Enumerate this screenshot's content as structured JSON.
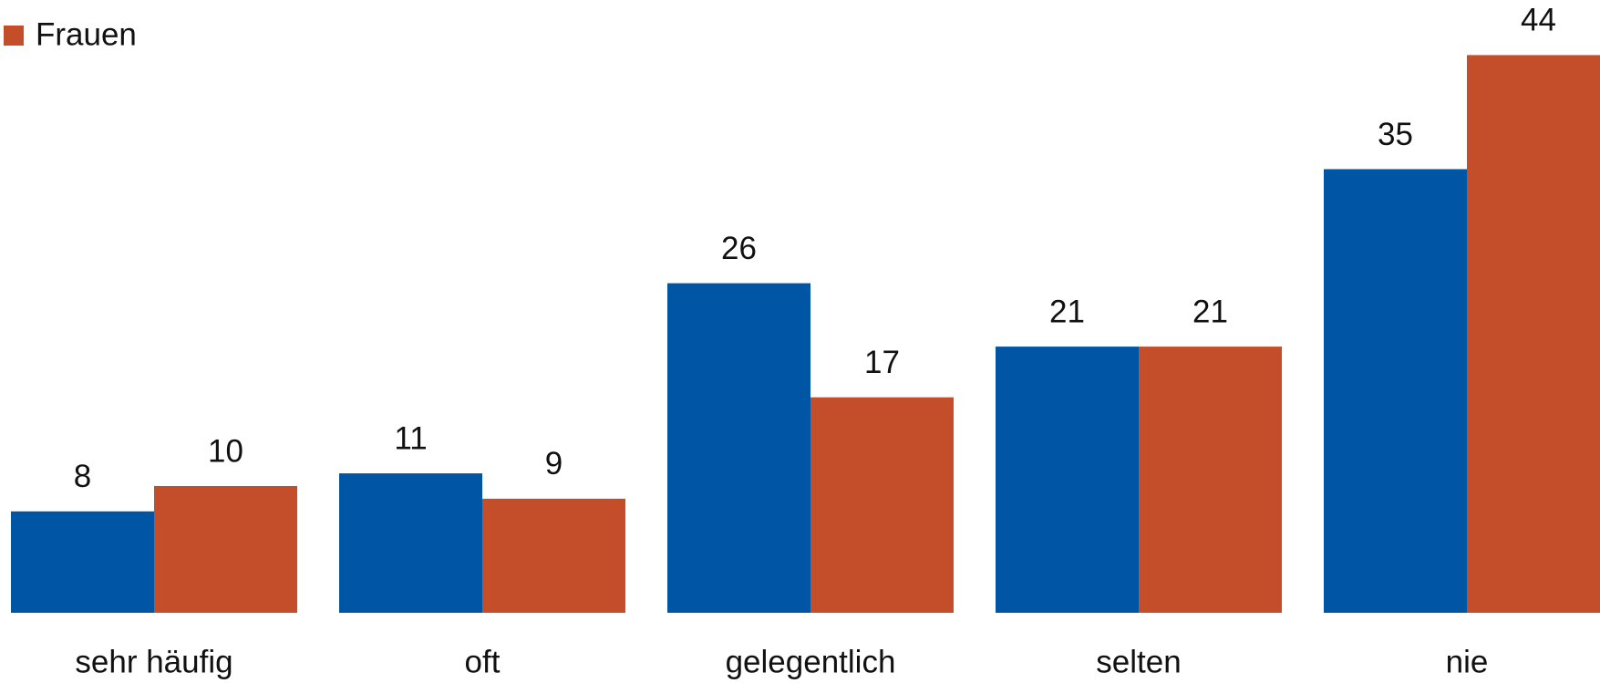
{
  "chart_data": {
    "type": "bar",
    "categories": [
      "sehr häufig",
      "oft",
      "gelegentlich",
      "selten",
      "nie"
    ],
    "series": [
      {
        "color": "#0055a5",
        "values": [
          8,
          11,
          26,
          21,
          35
        ]
      },
      {
        "name": "Frauen",
        "color": "#c44e2a",
        "values": [
          10,
          9,
          17,
          21,
          44
        ]
      }
    ]
  }
}
